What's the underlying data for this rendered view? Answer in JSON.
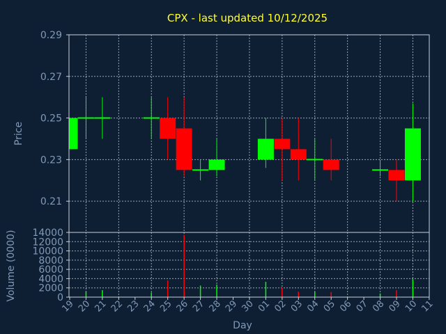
{
  "chart_data": {
    "type": "candlestick",
    "title": "CPX - last updated 10/12/2025",
    "xlabel": "Day",
    "x": [
      "19",
      "20",
      "21",
      "22",
      "23",
      "24",
      "25",
      "26",
      "27",
      "28",
      "29",
      "30",
      "01",
      "02",
      "03",
      "04",
      "05",
      "06",
      "07",
      "08",
      "09",
      "10",
      "11"
    ],
    "price": {
      "ylabel": "Price",
      "ylim": [
        0.195,
        0.29
      ],
      "yticks": [
        "0.29",
        "0.27",
        "0.25",
        "0.23",
        "0.21"
      ],
      "yticks_values": [
        0.29,
        0.27,
        0.25,
        0.23,
        0.21
      ],
      "candles": [
        {
          "day": "19",
          "open": 0.235,
          "close": 0.25,
          "high": 0.25,
          "low": 0.235
        },
        {
          "day": "20",
          "open": 0.25,
          "close": 0.25,
          "high": 0.26,
          "low": 0.24
        },
        {
          "day": "21",
          "open": 0.25,
          "close": 0.25,
          "high": 0.26,
          "low": 0.24
        },
        {
          "day": "24",
          "open": 0.25,
          "close": 0.25,
          "high": 0.26,
          "low": 0.24
        },
        {
          "day": "25",
          "open": 0.25,
          "close": 0.24,
          "high": 0.26,
          "low": 0.23
        },
        {
          "day": "26",
          "open": 0.245,
          "close": 0.225,
          "high": 0.26,
          "low": 0.222
        },
        {
          "day": "27",
          "open": 0.225,
          "close": 0.225,
          "high": 0.23,
          "low": 0.22
        },
        {
          "day": "28",
          "open": 0.225,
          "close": 0.23,
          "high": 0.24,
          "low": 0.222
        },
        {
          "day": "01",
          "open": 0.23,
          "close": 0.24,
          "high": 0.25,
          "low": 0.226
        },
        {
          "day": "02",
          "open": 0.24,
          "close": 0.235,
          "high": 0.25,
          "low": 0.22
        },
        {
          "day": "03",
          "open": 0.235,
          "close": 0.23,
          "high": 0.25,
          "low": 0.22
        },
        {
          "day": "04",
          "open": 0.23,
          "close": 0.23,
          "high": 0.24,
          "low": 0.22
        },
        {
          "day": "05",
          "open": 0.23,
          "close": 0.225,
          "high": 0.24,
          "low": 0.22
        },
        {
          "day": "08",
          "open": 0.225,
          "close": 0.225,
          "high": 0.23,
          "low": 0.222
        },
        {
          "day": "09",
          "open": 0.225,
          "close": 0.22,
          "high": 0.23,
          "low": 0.21
        },
        {
          "day": "10",
          "open": 0.22,
          "close": 0.245,
          "high": 0.257,
          "low": 0.21
        }
      ]
    },
    "volume": {
      "ylabel": "Volume (0000)",
      "ylim": [
        0,
        14000
      ],
      "yticks": [
        "14000",
        "12000",
        "10000",
        "8000",
        "6000",
        "4000",
        "2000",
        "0"
      ],
      "yticks_values": [
        14000,
        12000,
        10000,
        8000,
        6000,
        4000,
        2000,
        0
      ],
      "bars": [
        {
          "day": "20",
          "value": 1200,
          "direction": "up"
        },
        {
          "day": "21",
          "value": 1500,
          "direction": "up"
        },
        {
          "day": "24",
          "value": 1000,
          "direction": "up"
        },
        {
          "day": "25",
          "value": 3600,
          "direction": "down"
        },
        {
          "day": "26",
          "value": 13500,
          "direction": "down"
        },
        {
          "day": "27",
          "value": 2500,
          "direction": "up"
        },
        {
          "day": "28",
          "value": 2700,
          "direction": "up"
        },
        {
          "day": "01",
          "value": 3300,
          "direction": "up"
        },
        {
          "day": "02",
          "value": 2000,
          "direction": "down"
        },
        {
          "day": "03",
          "value": 1200,
          "direction": "down"
        },
        {
          "day": "04",
          "value": 1200,
          "direction": "up"
        },
        {
          "day": "05",
          "value": 1100,
          "direction": "down"
        },
        {
          "day": "08",
          "value": 800,
          "direction": "up"
        },
        {
          "day": "09",
          "value": 1500,
          "direction": "down"
        },
        {
          "day": "10",
          "value": 3900,
          "direction": "up"
        }
      ]
    },
    "colors": {
      "background": "#0f1f33",
      "up": "#00ff00",
      "down": "#ff0000",
      "title": "#ffff33",
      "labels": "#7f9ab8",
      "grid": "#c8d2dc"
    },
    "grid": true
  }
}
